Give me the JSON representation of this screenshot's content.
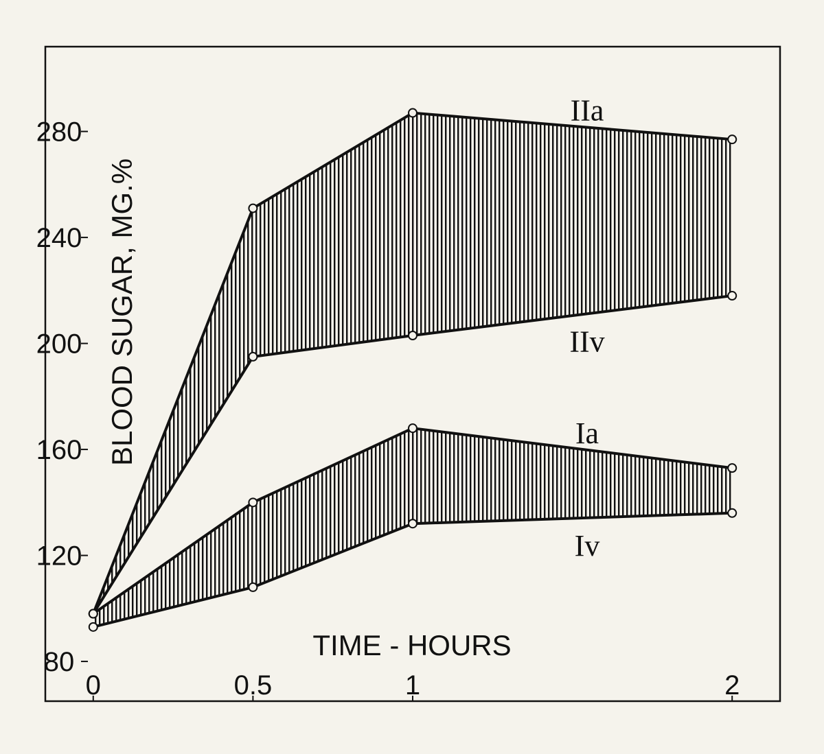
{
  "chart_data": {
    "type": "line",
    "x_label": "TIME - HOURS",
    "y_label": "BLOOD SUGAR, MG.%",
    "x": [
      0,
      0.5,
      1,
      2
    ],
    "series": [
      {
        "name": "IIa",
        "color": "#111111",
        "values": [
          98,
          251,
          287,
          277
        ]
      },
      {
        "name": "IIv",
        "color": "#111111",
        "values": [
          98,
          195,
          203,
          218
        ]
      },
      {
        "name": "Ia",
        "color": "#111111",
        "values": [
          98,
          140,
          168,
          153
        ]
      },
      {
        "name": "Iv",
        "color": "#111111",
        "values": [
          93,
          108,
          132,
          136
        ]
      }
    ],
    "fill_between": [
      [
        0,
        1
      ],
      [
        2,
        3
      ]
    ],
    "xlim": [
      -0.15,
      2.15
    ],
    "ylim": [
      65,
      312
    ],
    "xticks": [
      0,
      0.5,
      1,
      2
    ],
    "yticks": [
      80,
      120,
      160,
      200,
      240,
      280
    ]
  }
}
